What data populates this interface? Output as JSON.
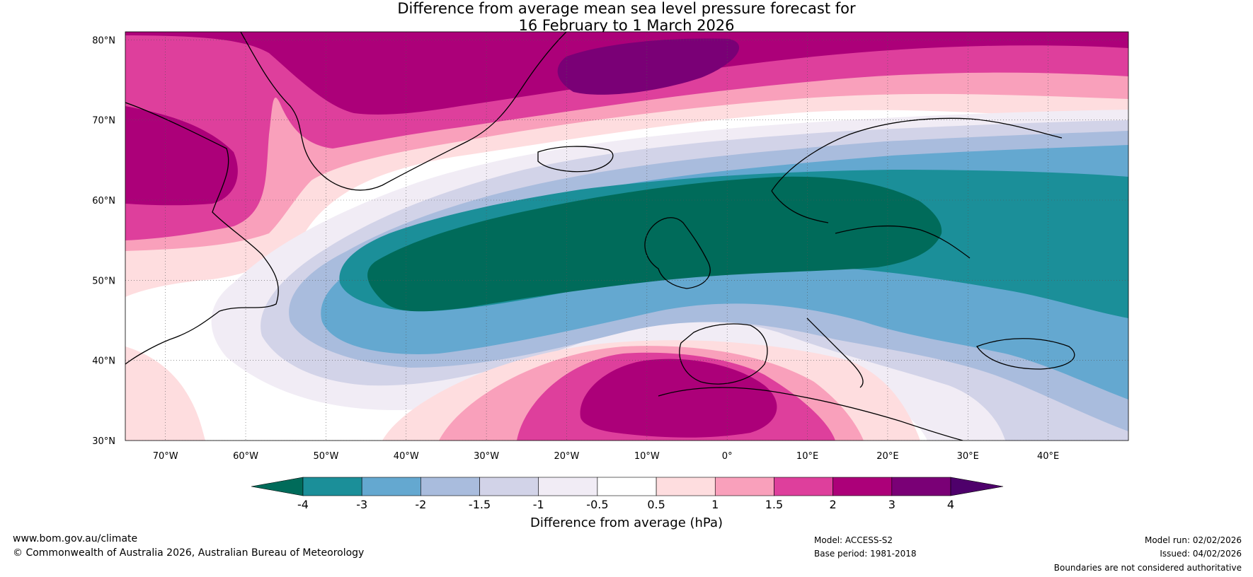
{
  "title": {
    "line1": "Difference from average mean sea level pressure forecast for",
    "line2": "16 February to 1 March 2026"
  },
  "map": {
    "lat_labels": [
      "80°N",
      "70°N",
      "60°N",
      "50°N",
      "40°N",
      "30°N"
    ],
    "lon_labels": [
      "70°W",
      "60°W",
      "50°W",
      "40°W",
      "30°W",
      "20°W",
      "10°W",
      "0°",
      "10°E",
      "20°E",
      "30°E",
      "40°E"
    ],
    "extent": {
      "lon_min": -75,
      "lon_max": 50,
      "lat_min": 30,
      "lat_max": 81
    }
  },
  "colorbar": {
    "title": "Difference from average (hPa)",
    "ticks": [
      "-4",
      "-3",
      "-2",
      "-1.5",
      "-1",
      "-0.5",
      "0.5",
      "1",
      "1.5",
      "2",
      "3",
      "4"
    ],
    "colors": [
      "#006b5a",
      "#1b8f99",
      "#64a8d0",
      "#a9bcdd",
      "#d2d3e8",
      "#f1ecf5",
      "#ffffff",
      "#fedddf",
      "#f9a0bb",
      "#de3f9c",
      "#ac0079",
      "#7a0076",
      "#4e006b"
    ]
  },
  "footer": {
    "website": "www.bom.gov.au/climate",
    "copyright": "© Commonwealth of Australia 2026, Australian Bureau of Meteorology",
    "model": "Model: ACCESS-S2",
    "base_period": "Base period: 1981-2018",
    "model_run": "Model run: 02/02/2026",
    "issued": "Issued: 04/02/2026",
    "boundaries": "Boundaries are not considered authoritative"
  }
}
